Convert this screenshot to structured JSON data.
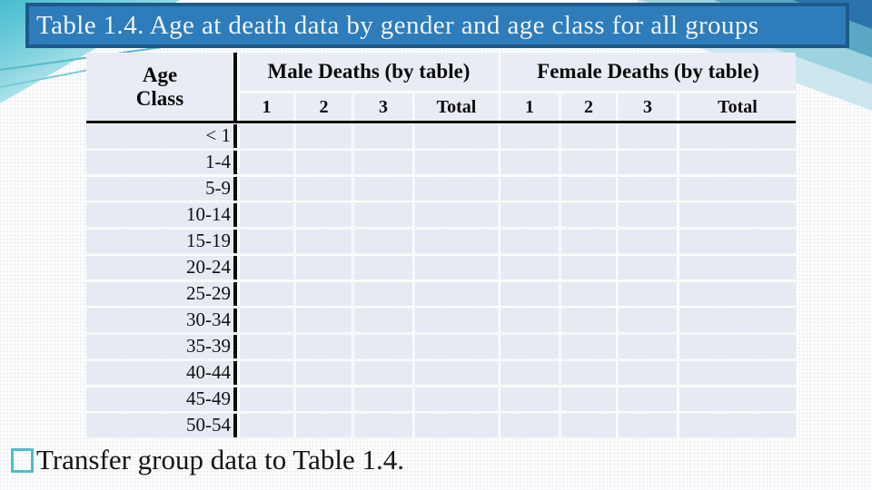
{
  "slide": {
    "title": "Table 1.4. Age at death data by gender and age class for all groups",
    "footer": {
      "bullet_icon": "square-outline-bullet",
      "text": "Transfer group data to Table 1.4."
    }
  },
  "table": {
    "corner_header_line1": "Age",
    "corner_header_line2": "Class",
    "groups": [
      {
        "label": "Male Deaths (by table)",
        "sub_headers": [
          "1",
          "2",
          "3",
          "Total"
        ]
      },
      {
        "label": "Female Deaths (by table)",
        "sub_headers": [
          "1",
          "2",
          "3",
          "Total"
        ]
      }
    ],
    "age_classes": [
      "< 1",
      "1-4",
      "5-9",
      "10-14",
      "15-19",
      "20-24",
      "25-29",
      "30-34",
      "35-39",
      "40-44",
      "45-49",
      "50-54"
    ],
    "empty_cell_value": ""
  },
  "colors": {
    "title_bg": "#2e7cba",
    "title_border": "#1d598b",
    "title_text": "#edf5fb",
    "header_cell_bg": "#e9ecf4",
    "body_cell_bg": "#e6eaf2",
    "table_rule": "#0b0b0b",
    "accent_teal": "#4bbfca",
    "band_blue_dark": "#2b73ad",
    "band_blue_mid": "#5aa6c4",
    "band_blue_light": "#9ed2df"
  }
}
